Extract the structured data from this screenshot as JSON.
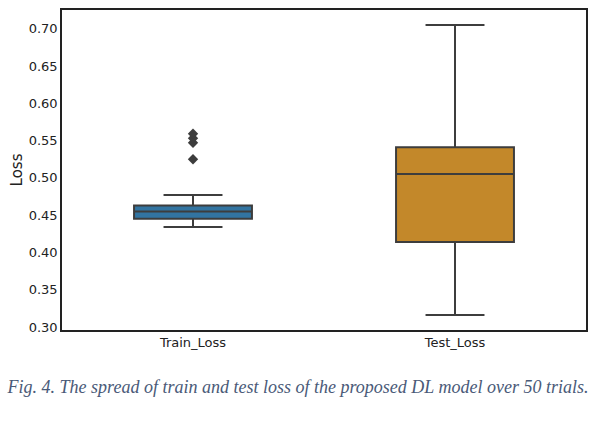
{
  "chart_data": {
    "type": "box",
    "ylabel": "Loss",
    "caption": "Fig. 4. The spread of train and test loss of the proposed DL model over 50 trials.",
    "marker": "diamond",
    "grid": false,
    "ylim": [
      0.296,
      0.725
    ],
    "yticks": [
      {
        "value": 0.3,
        "label": "0.30"
      },
      0.35,
      {
        "value": 0.4,
        "label": "0.40"
      },
      0.45,
      {
        "value": 0.5,
        "label": "0.50"
      },
      0.55,
      {
        "value": 0.6,
        "label": "0.60"
      },
      0.65,
      {
        "value": 0.7,
        "label": "0.70"
      }
    ],
    "boxes": [
      {
        "name": "Train_Loss",
        "color": "#3274a1",
        "lowerfence": 0.434,
        "q1": 0.445,
        "median": 0.455,
        "q3": 0.463,
        "upperfence": 0.477,
        "outliers": [
          0.525,
          0.547,
          0.553,
          0.559
        ]
      },
      {
        "name": "Test_Loss",
        "color": "#c3882a",
        "lowerfence": 0.316,
        "q1": 0.414,
        "median": 0.505,
        "q3": 0.541,
        "upperfence": 0.705,
        "outliers": []
      }
    ]
  }
}
